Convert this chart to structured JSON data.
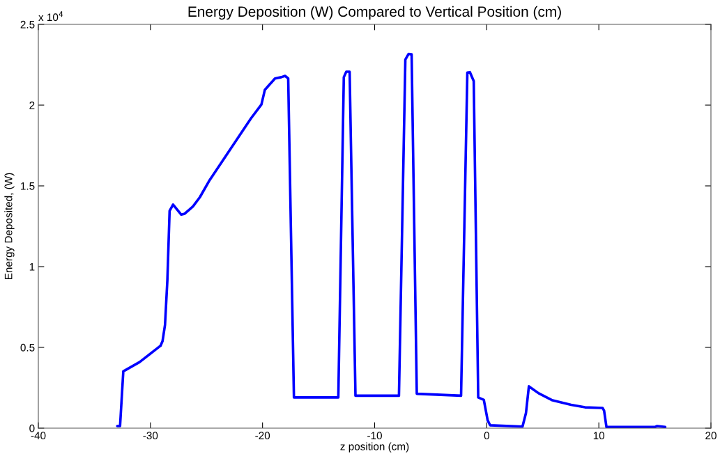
{
  "chart_data": {
    "type": "line",
    "title": "Energy Deposition (W) Compared to Vertical Position (cm)",
    "xlabel": "z position (cm)",
    "ylabel": "Energy Deposited, (W)",
    "annotations": [
      "x 10$^{4}$"
    ],
    "series": [
      {
        "color": "#0000ff",
        "x": [
          -32.96,
          -32.71,
          -32.42,
          -30.97,
          -29.1,
          -28.92,
          -28.7,
          -28.49,
          -28.29,
          -27.98,
          -27.25,
          -26.94,
          -26.21,
          -25.59,
          -24.77,
          -22.9,
          -21.03,
          -20.1,
          -19.79,
          -18.89,
          -18.33,
          -17.99,
          -17.71,
          -17.2,
          -13.24,
          -12.75,
          -12.53,
          -12.23,
          -11.71,
          -7.83,
          -7.26,
          -6.97,
          -6.7,
          -6.24,
          -2.29,
          -1.73,
          -1.5,
          -1.16,
          -0.76,
          -0.26,
          0.08,
          0.3,
          3.19,
          3.5,
          3.76,
          4.63,
          5.87,
          7.53,
          8.77,
          10.33,
          10.47,
          10.68,
          15.0,
          15.2,
          15.92
        ],
        "values": [
          0.013,
          0.013,
          0.352,
          0.409,
          0.51,
          0.539,
          0.639,
          0.914,
          1.345,
          1.384,
          1.322,
          1.328,
          1.372,
          1.43,
          1.53,
          1.724,
          1.918,
          2.004,
          2.095,
          2.165,
          2.173,
          2.181,
          2.165,
          0.19,
          0.19,
          2.173,
          2.207,
          2.207,
          0.201,
          0.201,
          2.282,
          2.317,
          2.314,
          0.213,
          0.201,
          2.201,
          2.204,
          2.149,
          0.19,
          0.175,
          0.049,
          0.018,
          0.01,
          0.094,
          0.259,
          0.216,
          0.172,
          0.144,
          0.129,
          0.125,
          0.108,
          0.007,
          0.007,
          0.013,
          0.007
        ]
      }
    ],
    "xlim": [
      -40,
      20
    ],
    "xticks": [
      -40,
      -30,
      -20,
      -10,
      0,
      10,
      20
    ],
    "ylim": [
      0,
      2.5
    ],
    "yticks": [
      0,
      0.5,
      1,
      1.5,
      2,
      2.5
    ],
    "grid": false,
    "legend": false,
    "marker": "none",
    "line_style": "solid"
  }
}
